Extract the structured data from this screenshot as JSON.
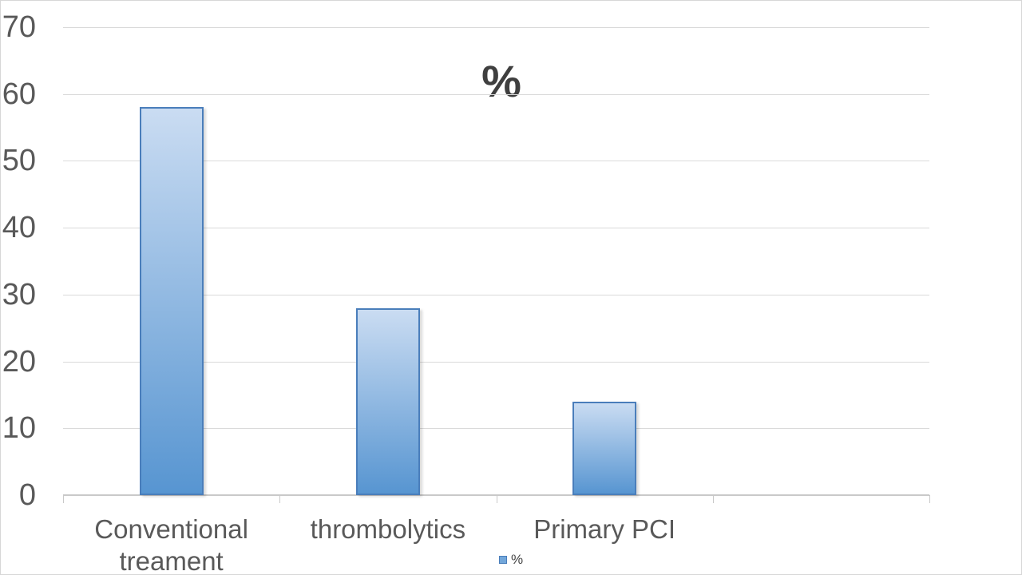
{
  "chart_data": {
    "type": "bar",
    "title": "%",
    "categories": [
      "Conventional treament",
      "thrombolytics",
      "Primary PCI"
    ],
    "series": [
      {
        "name": "%",
        "values": [
          58,
          28,
          14
        ]
      }
    ],
    "xlabel": "",
    "ylabel": "",
    "y_ticks": [
      0,
      10,
      20,
      30,
      40,
      50,
      60,
      70
    ],
    "ylim": [
      0,
      70
    ],
    "slot_count": 4,
    "grid": true,
    "legend_position": "bottom"
  },
  "colors": {
    "bar_gradient_top": "#cadcf2",
    "bar_gradient_bottom": "#5795d1",
    "bar_border": "#4a7ebb",
    "gridline": "#dadada",
    "axis_line": "#c9c9c9",
    "axis_text": "#595959",
    "title_text": "#3f3f3f",
    "legend_marker_fill": "#73a7da",
    "chart_border": "#d7d7d7"
  }
}
